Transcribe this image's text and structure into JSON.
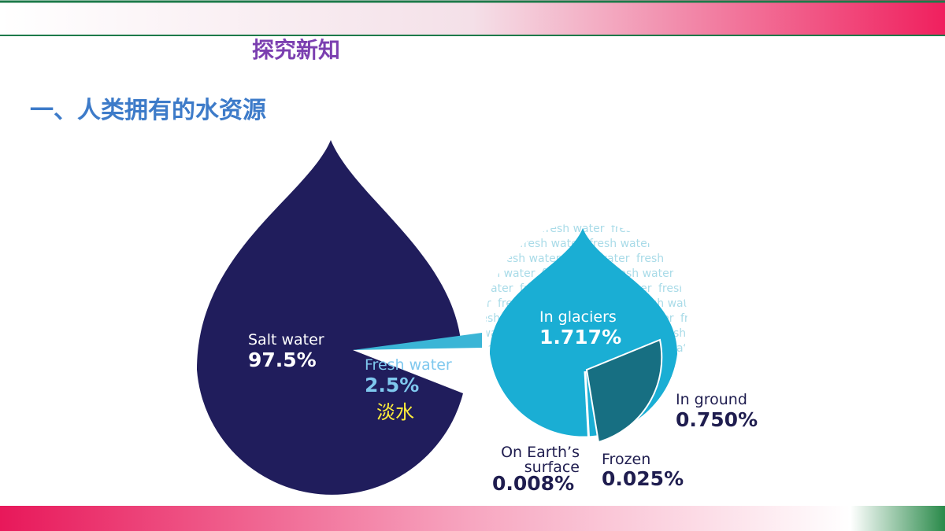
{
  "header": {
    "section": "探究新知",
    "title": "一、人类拥有的水资源"
  },
  "infographic": {
    "salt": {
      "label": "Salt water",
      "value": "97.5%"
    },
    "fresh": {
      "label": "Fresh water",
      "value": "2.5%",
      "note": "淡水"
    },
    "glaciers": {
      "label": "In glaciers",
      "value": "1.717%"
    },
    "ground": {
      "label": "In ground",
      "value": "0.750%"
    },
    "surface": {
      "label": [
        "On Earth’s",
        "surface"
      ],
      "value": "0.008%"
    },
    "frozen": {
      "label": "Frozen",
      "value": "0.025%"
    },
    "background_text": "fresh water"
  }
}
